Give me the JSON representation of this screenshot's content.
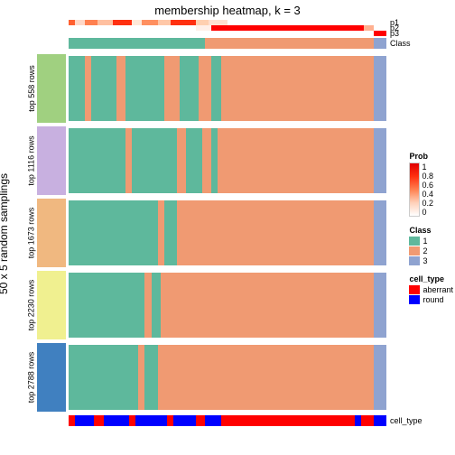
{
  "title": "membership heatmap, k = 3",
  "ylabel": "50 x 5 random samplings",
  "colors": {
    "c1": "#5eb89c",
    "c2": "#f09a72",
    "c3": "#8fa3d0",
    "aberrant": "#ff0000",
    "round": "#0000ff",
    "prob_low": "#ffffff",
    "prob_high": "#e00000"
  },
  "top_prob_labels": [
    "p1",
    "p2",
    "p3"
  ],
  "top_class_label": "Class",
  "p1_segments": [
    {
      "w": 2,
      "c": "#ff6030"
    },
    {
      "w": 3,
      "c": "#ffd8c8"
    },
    {
      "w": 4,
      "c": "#ff8050"
    },
    {
      "w": 5,
      "c": "#ffc0a0"
    },
    {
      "w": 6,
      "c": "#ff3010"
    },
    {
      "w": 3,
      "c": "#ffe8d8"
    },
    {
      "w": 5,
      "c": "#ff9060"
    },
    {
      "w": 4,
      "c": "#ffc8a8"
    },
    {
      "w": 8,
      "c": "#ff3010"
    },
    {
      "w": 4,
      "c": "#ffd0b0"
    },
    {
      "w": 6,
      "c": "#ffe0d0"
    },
    {
      "w": 50,
      "c": "#ffffff"
    }
  ],
  "p2_segments": [
    {
      "w": 40,
      "c": "#ffffff"
    },
    {
      "w": 5,
      "c": "#fff0e8"
    },
    {
      "w": 48,
      "c": "#ff0000"
    },
    {
      "w": 3,
      "c": "#ffb090"
    },
    {
      "w": 4,
      "c": "#ffffff"
    }
  ],
  "p3_segments": [
    {
      "w": 96,
      "c": "#ffffff"
    },
    {
      "w": 4,
      "c": "#ff0000"
    }
  ],
  "class_segments": [
    {
      "w": 43,
      "c": "#5eb89c"
    },
    {
      "w": 53,
      "c": "#f09a72"
    },
    {
      "w": 4,
      "c": "#8fa3d0"
    }
  ],
  "panels": [
    {
      "label": "top 558 rows",
      "swatch": "#a0d080",
      "cols": [
        {
          "w": 5,
          "c": "#5eb89c"
        },
        {
          "w": 2,
          "c": "#f09a72"
        },
        {
          "w": 8,
          "c": "#5eb89c"
        },
        {
          "w": 3,
          "c": "#f09a72"
        },
        {
          "w": 12,
          "c": "#5eb89c"
        },
        {
          "w": 5,
          "c": "#f09a72"
        },
        {
          "w": 6,
          "c": "#5eb89c"
        },
        {
          "w": 4,
          "c": "#f09a72"
        },
        {
          "w": 3,
          "c": "#5eb89c"
        },
        {
          "w": 48,
          "c": "#f09a72"
        },
        {
          "w": 4,
          "c": "#8fa3d0"
        }
      ]
    },
    {
      "label": "top 1116 rows",
      "swatch": "#c8b0e0",
      "cols": [
        {
          "w": 18,
          "c": "#5eb89c"
        },
        {
          "w": 2,
          "c": "#f09a72"
        },
        {
          "w": 14,
          "c": "#5eb89c"
        },
        {
          "w": 3,
          "c": "#f09a72"
        },
        {
          "w": 5,
          "c": "#5eb89c"
        },
        {
          "w": 3,
          "c": "#f09a72"
        },
        {
          "w": 2,
          "c": "#5eb89c"
        },
        {
          "w": 49,
          "c": "#f09a72"
        },
        {
          "w": 4,
          "c": "#8fa3d0"
        }
      ]
    },
    {
      "label": "top 1673 rows",
      "swatch": "#f0b880",
      "cols": [
        {
          "w": 28,
          "c": "#5eb89c"
        },
        {
          "w": 2,
          "c": "#f09a72"
        },
        {
          "w": 4,
          "c": "#5eb89c"
        },
        {
          "w": 62,
          "c": "#f09a72"
        },
        {
          "w": 4,
          "c": "#8fa3d0"
        }
      ]
    },
    {
      "label": "top 2230 rows",
      "swatch": "#f0f090",
      "cols": [
        {
          "w": 24,
          "c": "#5eb89c"
        },
        {
          "w": 2,
          "c": "#f09a72"
        },
        {
          "w": 3,
          "c": "#5eb89c"
        },
        {
          "w": 67,
          "c": "#f09a72"
        },
        {
          "w": 4,
          "c": "#8fa3d0"
        }
      ]
    },
    {
      "label": "top 2788 rows",
      "swatch": "#4080c0",
      "cols": [
        {
          "w": 22,
          "c": "#5eb89c"
        },
        {
          "w": 2,
          "c": "#f09a72"
        },
        {
          "w": 4,
          "c": "#5eb89c"
        },
        {
          "w": 68,
          "c": "#f09a72"
        },
        {
          "w": 4,
          "c": "#8fa3d0"
        }
      ]
    }
  ],
  "bottom_segments": [
    {
      "w": 2,
      "c": "#ff0000"
    },
    {
      "w": 6,
      "c": "#0000ff"
    },
    {
      "w": 3,
      "c": "#ff0000"
    },
    {
      "w": 8,
      "c": "#0000ff"
    },
    {
      "w": 2,
      "c": "#ff0000"
    },
    {
      "w": 10,
      "c": "#0000ff"
    },
    {
      "w": 2,
      "c": "#ff0000"
    },
    {
      "w": 7,
      "c": "#0000ff"
    },
    {
      "w": 3,
      "c": "#ff0000"
    },
    {
      "w": 5,
      "c": "#0000ff"
    },
    {
      "w": 42,
      "c": "#ff0000"
    },
    {
      "w": 2,
      "c": "#0000ff"
    },
    {
      "w": 4,
      "c": "#ff0000"
    },
    {
      "w": 4,
      "c": "#0000ff"
    }
  ],
  "bottom_label": "cell_type",
  "legends": {
    "prob": {
      "title": "Prob",
      "ticks": [
        "1",
        "0.8",
        "0.6",
        "0.4",
        "0.2",
        "0"
      ]
    },
    "class": {
      "title": "Class",
      "items": [
        {
          "l": "1",
          "c": "#5eb89c"
        },
        {
          "l": "2",
          "c": "#f09a72"
        },
        {
          "l": "3",
          "c": "#8fa3d0"
        }
      ]
    },
    "cell_type": {
      "title": "cell_type",
      "items": [
        {
          "l": "aberrant",
          "c": "#ff0000"
        },
        {
          "l": "round",
          "c": "#0000ff"
        }
      ]
    }
  }
}
